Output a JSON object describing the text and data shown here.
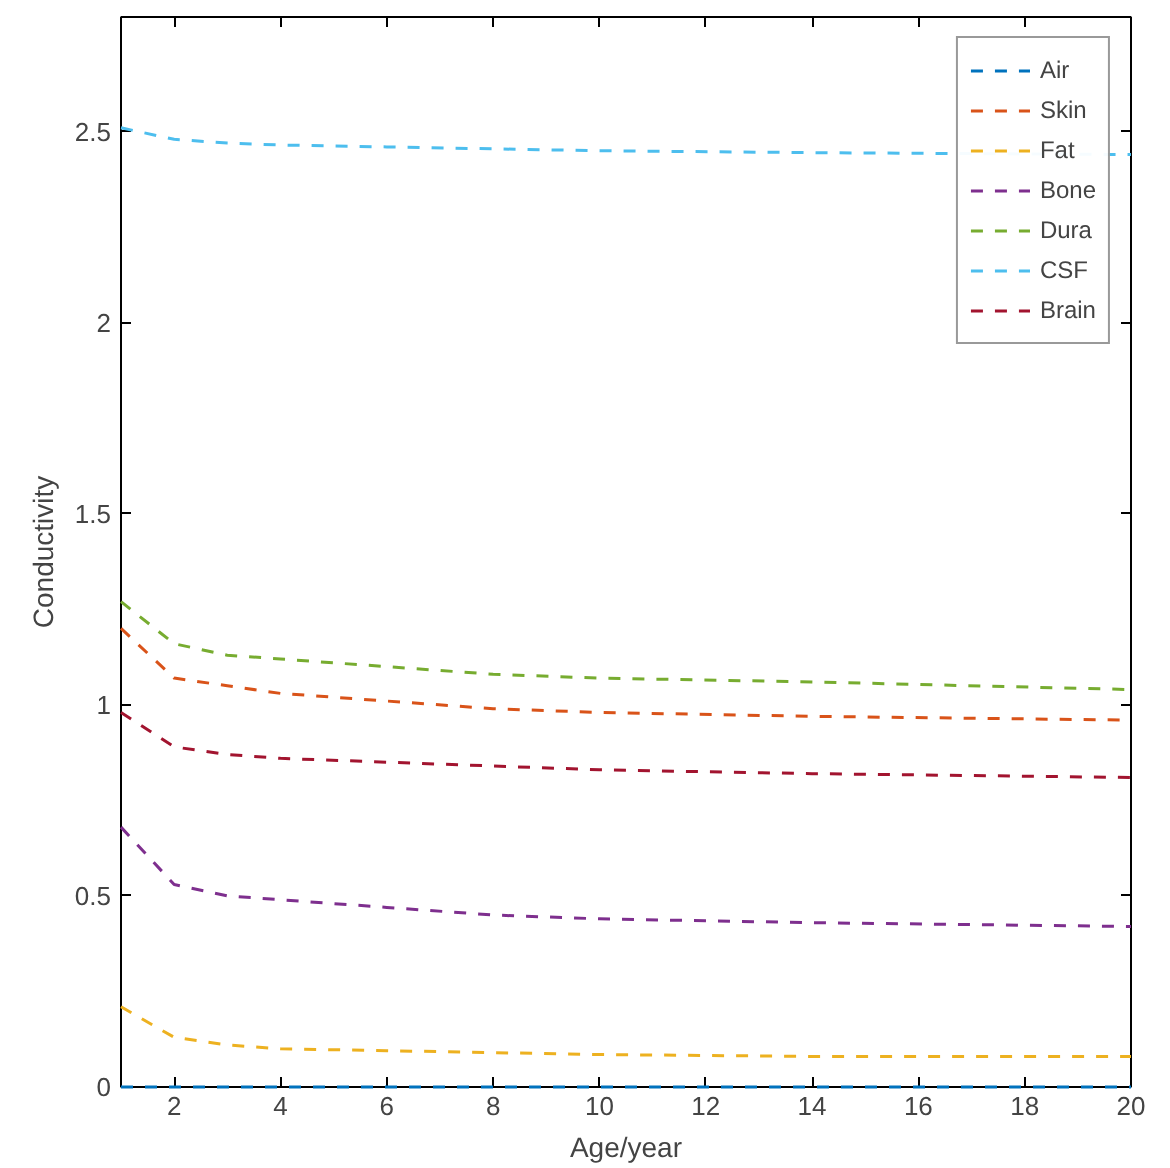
{
  "chart_data": {
    "type": "line",
    "xlabel": "Age/year",
    "ylabel": "Conductivity",
    "xlim": [
      1,
      20
    ],
    "ylim": [
      0,
      2.8
    ],
    "xticks": [
      2,
      4,
      6,
      8,
      10,
      12,
      14,
      16,
      18,
      20
    ],
    "yticks": [
      0,
      0.5,
      1,
      1.5,
      2,
      2.5
    ],
    "grid": false,
    "legend": "top right",
    "line_style": "dashed",
    "marker": "none",
    "x": [
      1,
      2,
      3,
      4,
      6,
      8,
      10,
      14,
      20
    ],
    "series": [
      {
        "name": "Air",
        "color": "#0072bd",
        "values": [
          0,
          0,
          0,
          0,
          0,
          0,
          0,
          0,
          0
        ]
      },
      {
        "name": "Skin",
        "color": "#d95319",
        "values": [
          1.2,
          1.07,
          1.05,
          1.03,
          1.01,
          0.99,
          0.98,
          0.97,
          0.96
        ]
      },
      {
        "name": "Fat",
        "color": "#edb120",
        "values": [
          0.21,
          0.13,
          0.11,
          0.1,
          0.095,
          0.09,
          0.085,
          0.08,
          0.08
        ]
      },
      {
        "name": "Bone",
        "color": "#7e2f8e",
        "values": [
          0.68,
          0.53,
          0.5,
          0.49,
          0.47,
          0.45,
          0.44,
          0.43,
          0.42
        ]
      },
      {
        "name": "Dura",
        "color": "#77ac30",
        "values": [
          1.27,
          1.16,
          1.13,
          1.12,
          1.1,
          1.08,
          1.07,
          1.06,
          1.04
        ]
      },
      {
        "name": "CSF",
        "color": "#4dbeee",
        "values": [
          2.51,
          2.48,
          2.47,
          2.465,
          2.46,
          2.455,
          2.45,
          2.445,
          2.44
        ]
      },
      {
        "name": "Brain",
        "color": "#a2142f",
        "values": [
          0.98,
          0.89,
          0.87,
          0.86,
          0.85,
          0.84,
          0.83,
          0.82,
          0.81
        ]
      }
    ]
  }
}
